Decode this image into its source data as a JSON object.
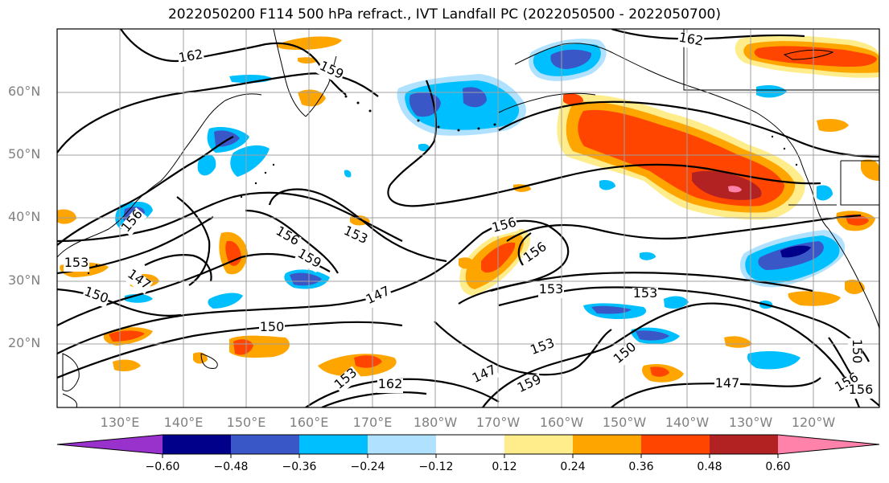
{
  "title": "2022050200 F114 500 hPa refract., IVT Landfall PC (2022050500 - 2022050700)",
  "lat_labels": [
    "60°N",
    "50°N",
    "40°N",
    "30°N",
    "20°N"
  ],
  "lon_labels": [
    "130°E",
    "140°E",
    "150°E",
    "160°E",
    "170°E",
    "180°W",
    "170°W",
    "160°W",
    "150°W",
    "140°W",
    "130°W",
    "120°W"
  ],
  "colorbar": {
    "colors": [
      "#9932cc",
      "#00008b",
      "#3a57c8",
      "#00bfff",
      "#b0e2ff",
      "#ffffff",
      "#ffec8b",
      "#ffa500",
      "#ff4500",
      "#b22222",
      "#ff82ab"
    ],
    "ticks": [
      "−0.60",
      "−0.48",
      "−0.36",
      "−0.24",
      "−0.12",
      "0.12",
      "0.24",
      "0.36",
      "0.48",
      "0.60"
    ]
  },
  "contour_labels": [
    "162",
    "159",
    "156",
    "153",
    "150",
    "147",
    "156",
    "153",
    "159",
    "156",
    "153",
    "156",
    "153",
    "150",
    "147",
    "150",
    "153",
    "156",
    "147",
    "159",
    "162",
    "156",
    "162",
    "153",
    "147",
    "150",
    "153",
    "156",
    "153",
    "150",
    "156",
    "153",
    "147",
    "159",
    "162"
  ]
}
